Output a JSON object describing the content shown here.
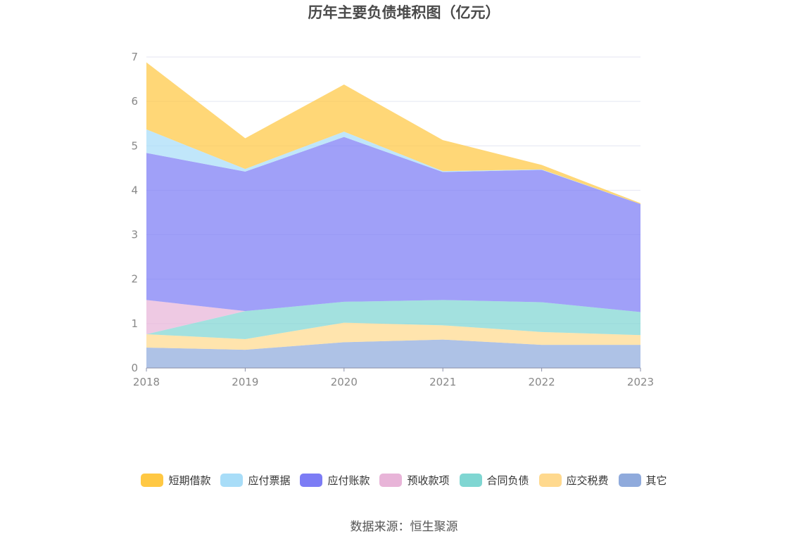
{
  "chart_data": {
    "type": "area",
    "stacked": true,
    "title": "历年主要负债堆积图（亿元）",
    "x": [
      "2018",
      "2019",
      "2020",
      "2021",
      "2022",
      "2023"
    ],
    "ylim": [
      0,
      7
    ],
    "yticks": [
      "0",
      "1",
      "2",
      "3",
      "4",
      "5",
      "6",
      "7"
    ],
    "grid": true,
    "legend_position": "bottom",
    "series": [
      {
        "name": "其它",
        "color": "#8FAADC",
        "values": [
          0.46,
          0.41,
          0.58,
          0.64,
          0.52,
          0.52
        ]
      },
      {
        "name": "应交税费",
        "color": "#FFD98E",
        "values": [
          0.3,
          0.24,
          0.44,
          0.32,
          0.29,
          0.22
        ]
      },
      {
        "name": "合同负债",
        "color": "#7FD6D2",
        "values": [
          0.0,
          0.63,
          0.47,
          0.57,
          0.67,
          0.52
        ]
      },
      {
        "name": "预收款项",
        "color": "#E8B4D8",
        "values": [
          0.77,
          0.0,
          0.0,
          0.0,
          0.0,
          0.0
        ]
      },
      {
        "name": "应付账款",
        "color": "#7C7CF5",
        "values": [
          3.31,
          3.14,
          3.71,
          2.88,
          2.98,
          2.43
        ]
      },
      {
        "name": "应付票据",
        "color": "#A8DDF8",
        "values": [
          0.53,
          0.06,
          0.12,
          0.02,
          0.01,
          0.0
        ]
      },
      {
        "name": "短期借款",
        "color": "#FFC843",
        "values": [
          1.51,
          0.69,
          1.06,
          0.7,
          0.1,
          0.02
        ]
      }
    ]
  },
  "legend_order": [
    "短期借款",
    "应付票据",
    "应付账款",
    "预收款项",
    "合同负债",
    "应交税费",
    "其它"
  ],
  "source": "数据来源：恒生聚源"
}
